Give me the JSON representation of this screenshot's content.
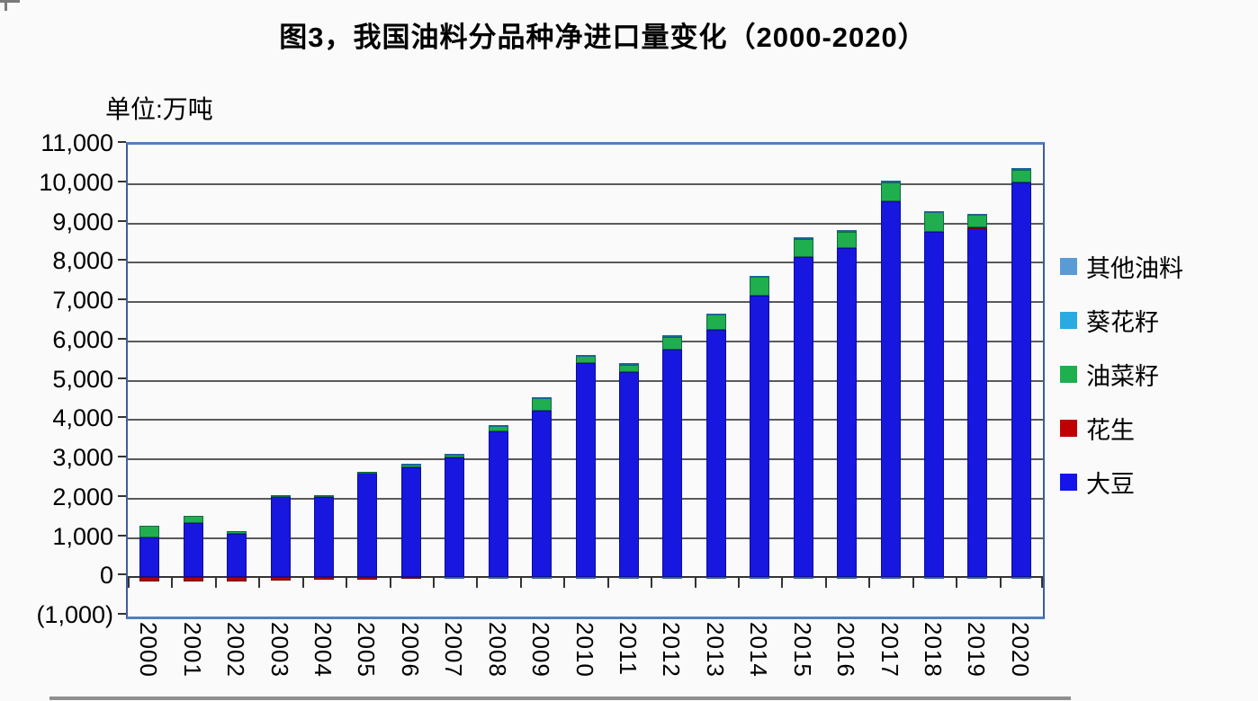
{
  "title": "图3，我国油料分品种净进口量变化（2000-2020）",
  "unit_label": "单位:万吨",
  "colors": {
    "background": "#FBFAFB",
    "frame": "#4F81BD",
    "gridline": "#5A5A5A",
    "soybean": "#1717E0",
    "peanut": "#B00505",
    "rapeseed": "#1FAF4F",
    "sunflower": "#29ABE2",
    "other_oilseed": "#5B9BD5"
  },
  "legend": [
    {
      "label": "其他油料",
      "color": "#5B9BD5"
    },
    {
      "label": "葵花籽",
      "color": "#29ABE2"
    },
    {
      "label": "油菜籽",
      "color": "#1FAF4F"
    },
    {
      "label": "花生",
      "color": "#C00000"
    },
    {
      "label": "大豆",
      "color": "#1414EB"
    }
  ],
  "chart_data": {
    "type": "bar",
    "stacked": true,
    "title": "图3，我国油料分品种净进口量变化（2000-2020）",
    "ylabel": "单位:万吨",
    "xlabel": "",
    "grid": true,
    "legend_position": "right",
    "ylim": [
      -1000,
      11000
    ],
    "ytick_step": 1000,
    "ytick_labels": [
      "(1,000)",
      "0",
      "1,000",
      "2,000",
      "3,000",
      "4,000",
      "5,000",
      "6,000",
      "7,000",
      "8,000",
      "9,000",
      "10,000",
      "11,000"
    ],
    "categories": [
      "2000",
      "2001",
      "2002",
      "2003",
      "2004",
      "2005",
      "2006",
      "2007",
      "2008",
      "2009",
      "2010",
      "2011",
      "2012",
      "2013",
      "2014",
      "2015",
      "2016",
      "2017",
      "2018",
      "2019",
      "2020"
    ],
    "series": [
      {
        "name": "大豆",
        "color": "#1717E0",
        "values": [
          1010,
          1380,
          1110,
          2070,
          2040,
          2650,
          2800,
          3040,
          3700,
          4230,
          5440,
          5220,
          5790,
          6290,
          7150,
          8140,
          8380,
          9570,
          8780,
          8870,
          10040
        ]
      },
      {
        "name": "花生",
        "color": "#B00505",
        "values": [
          -100,
          -100,
          -110,
          -90,
          -60,
          -60,
          -50,
          0,
          0,
          0,
          0,
          0,
          0,
          0,
          0,
          0,
          0,
          0,
          0,
          30,
          0
        ]
      },
      {
        "name": "油菜籽",
        "color": "#1FAF4F",
        "values": [
          290,
          170,
          60,
          20,
          40,
          30,
          80,
          95,
          140,
          330,
          195,
          185,
          330,
          380,
          480,
          450,
          400,
          470,
          500,
          310,
          330
        ]
      },
      {
        "name": "葵花籽",
        "color": "#29ABE2",
        "values": [
          0,
          0,
          0,
          0,
          0,
          0,
          10,
          10,
          25,
          25,
          25,
          30,
          25,
          30,
          40,
          60,
          40,
          40,
          30,
          30,
          40
        ]
      },
      {
        "name": "其他油料",
        "color": "#5B9BD5",
        "values": [
          0,
          0,
          0,
          0,
          0,
          0,
          0,
          -40,
          -40,
          -40,
          -40,
          -40,
          -40,
          -40,
          -40,
          -40,
          -40,
          -40,
          -40,
          -40,
          -40
        ]
      }
    ]
  }
}
